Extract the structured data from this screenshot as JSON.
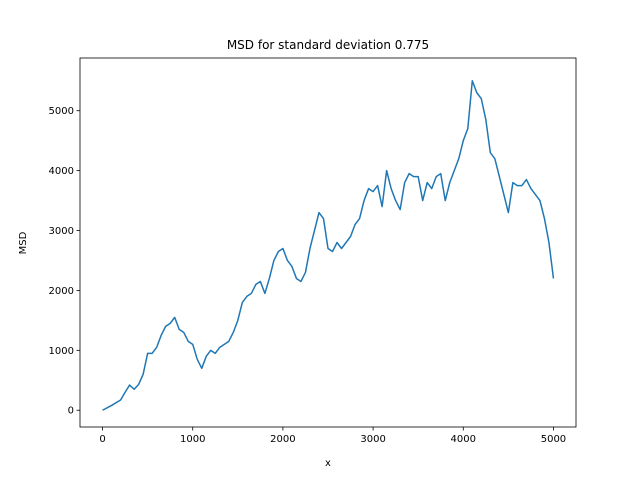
{
  "chart_data": {
    "type": "line",
    "title": "MSD for standard deviation 0.775",
    "xlabel": "x",
    "ylabel": "MSD",
    "color": "#1f77b4",
    "x": [
      0,
      100,
      200,
      250,
      300,
      350,
      400,
      450,
      500,
      550,
      600,
      650,
      700,
      750,
      800,
      850,
      900,
      950,
      1000,
      1050,
      1100,
      1150,
      1200,
      1250,
      1300,
      1350,
      1400,
      1450,
      1500,
      1550,
      1600,
      1650,
      1700,
      1750,
      1800,
      1850,
      1900,
      1950,
      2000,
      2050,
      2100,
      2150,
      2200,
      2250,
      2300,
      2350,
      2400,
      2450,
      2500,
      2550,
      2600,
      2650,
      2700,
      2750,
      2800,
      2850,
      2900,
      2950,
      3000,
      3050,
      3100,
      3150,
      3200,
      3250,
      3300,
      3350,
      3400,
      3450,
      3500,
      3550,
      3600,
      3650,
      3700,
      3750,
      3800,
      3850,
      3900,
      3950,
      4000,
      4050,
      4100,
      4150,
      4200,
      4250,
      4300,
      4350,
      4400,
      4450,
      4500,
      4550,
      4600,
      4650,
      4700,
      4750,
      4800,
      4850,
      4900,
      4950,
      5000
    ],
    "values": [
      0,
      80,
      170,
      300,
      420,
      350,
      430,
      600,
      950,
      950,
      1050,
      1250,
      1400,
      1450,
      1550,
      1350,
      1300,
      1150,
      1100,
      850,
      700,
      900,
      1000,
      950,
      1050,
      1100,
      1150,
      1300,
      1500,
      1800,
      1900,
      1950,
      2100,
      2150,
      1950,
      2200,
      2500,
      2650,
      2700,
      2500,
      2400,
      2200,
      2150,
      2300,
      2700,
      3000,
      3300,
      3200,
      2700,
      2650,
      2800,
      2700,
      2800,
      2900,
      3100,
      3200,
      3500,
      3700,
      3650,
      3750,
      3400,
      4000,
      3700,
      3500,
      3350,
      3800,
      3950,
      3900,
      3900,
      3500,
      3800,
      3700,
      3900,
      3950,
      3500,
      3800,
      4000,
      4200,
      4500,
      4700,
      5500,
      5300,
      5200,
      4850,
      4300,
      4200,
      3900,
      3600,
      3300,
      3800,
      3750,
      3750,
      3850,
      3700,
      3600,
      3500,
      3200,
      2800,
      2200
    ],
    "xlim": [
      -250,
      5250
    ],
    "ylim": [
      -280,
      5880
    ],
    "xticks": [
      0,
      1000,
      2000,
      3000,
      4000,
      5000
    ],
    "yticks": [
      0,
      1000,
      2000,
      3000,
      4000,
      5000
    ]
  }
}
